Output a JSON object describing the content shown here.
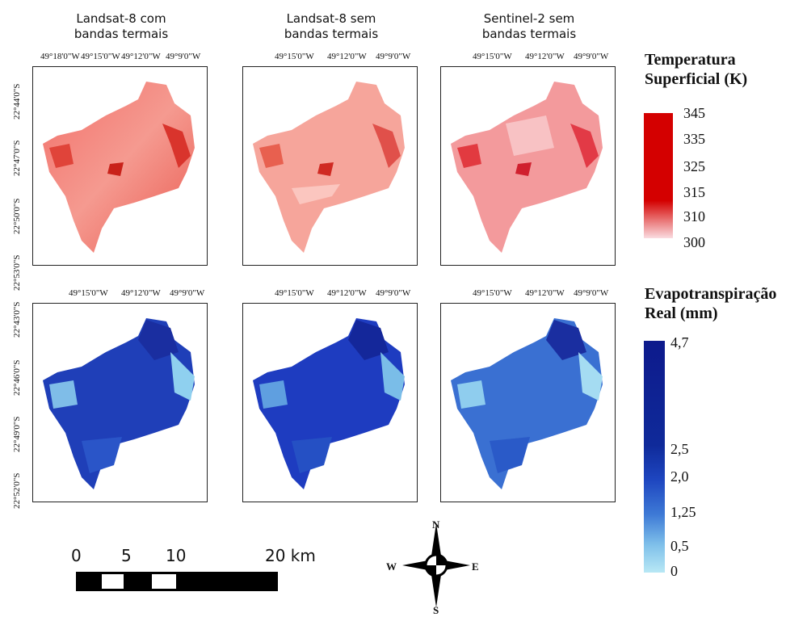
{
  "columns": [
    {
      "title_line1": "Landsat-8 com",
      "title_line2": "bandas termais"
    },
    {
      "title_line1": "Landsat-8 sem",
      "title_line2": "bandas termais"
    },
    {
      "title_line1": "Sentinel-2 sem",
      "title_line2": "bandas termais"
    }
  ],
  "top_row": {
    "lon_ticks_first": [
      "49°18'0\"W",
      "49°15'0\"W",
      "49°12'0\"W",
      "49°9'0\"W"
    ],
    "lon_ticks": [
      "49°15'0\"W",
      "49°12'0\"W",
      "49°9'0\"W"
    ],
    "lat_ticks": [
      "22°44'0\"S",
      "22°47'0\"S",
      "22°50'0\"S",
      "22°53'0\"S"
    ]
  },
  "bottom_row": {
    "lon_ticks": [
      "49°15'0\"W",
      "49°12'0\"W",
      "49°9'0\"W"
    ],
    "lat_ticks": [
      "22°43'0\"S",
      "22°46'0\"S",
      "22°49'0\"S",
      "22°52'0\"S"
    ]
  },
  "legend_temp": {
    "title_line1": "Temperatura",
    "title_line2": "Superficial (K)",
    "labels": [
      "345",
      "335",
      "325",
      "315",
      "310",
      "300"
    ],
    "color_high": "#d40000",
    "color_low": "#fadbe0"
  },
  "legend_et": {
    "title_line1": "Evapotranspiração",
    "title_line2": "Real (mm)",
    "labels": [
      "4,7",
      "2,5",
      "2,0",
      "1,25",
      "0,5",
      "0"
    ],
    "color_high": "#0d1a8c",
    "color_low": "#b8e8f5"
  },
  "scale_bar": {
    "labels": [
      "0",
      "5",
      "10",
      "20 km"
    ]
  },
  "compass": {
    "n": "N",
    "s": "S",
    "e": "E",
    "w": "W"
  }
}
